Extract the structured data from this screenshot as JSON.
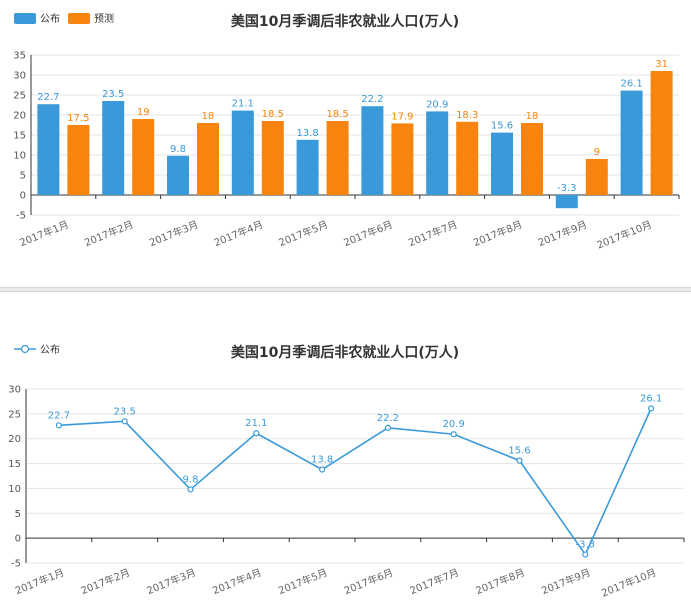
{
  "chart_data": [
    {
      "type": "bar",
      "title": "美国10月季调后非农就业人口(万人)",
      "categories": [
        "2017年1月",
        "2017年2月",
        "2017年3月",
        "2017年4月",
        "2017年5月",
        "2017年6月",
        "2017年7月",
        "2017年8月",
        "2017年9月",
        "2017年10月"
      ],
      "series": [
        {
          "name": "公布",
          "color": "#3a9ad9",
          "values": [
            22.7,
            23.5,
            9.8,
            21.1,
            13.8,
            22.2,
            20.9,
            15.6,
            -3.3,
            26.1
          ]
        },
        {
          "name": "预测",
          "color": "#f7840f",
          "values": [
            17.5,
            19,
            18,
            18.5,
            18.5,
            17.9,
            18.3,
            18,
            9,
            31
          ]
        }
      ],
      "ylim": [
        -5,
        35
      ],
      "yticks": [
        -5,
        0,
        5,
        10,
        15,
        20,
        25,
        30,
        35
      ],
      "legend": "top-left",
      "grid": true
    },
    {
      "type": "line",
      "title": "美国10月季调后非农就业人口(万人)",
      "categories": [
        "2017年1月",
        "2017年2月",
        "2017年3月",
        "2017年4月",
        "2017年5月",
        "2017年6月",
        "2017年7月",
        "2017年8月",
        "2017年9月",
        "2017年10月"
      ],
      "series": [
        {
          "name": "公布",
          "color": "#3a9ad9",
          "values": [
            22.7,
            23.5,
            9.8,
            21.1,
            13.8,
            22.2,
            20.9,
            15.6,
            -3.3,
            26.1
          ]
        }
      ],
      "ylim": [
        -5,
        30
      ],
      "yticks": [
        -5,
        0,
        5,
        10,
        15,
        20,
        25,
        30
      ],
      "legend": "top-left",
      "grid": true
    }
  ]
}
